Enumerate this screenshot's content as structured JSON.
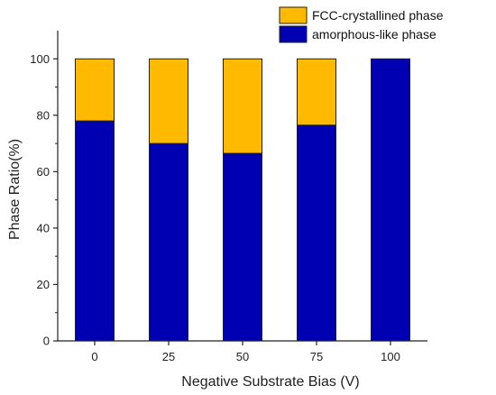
{
  "chart_data": {
    "type": "bar",
    "stacked": true,
    "categories": [
      "0",
      "25",
      "50",
      "75",
      "100"
    ],
    "series": [
      {
        "name": "amorphous-like phase",
        "values": [
          78,
          70,
          66.5,
          76.5,
          100
        ],
        "color": "#0000b3"
      },
      {
        "name": "FCC-crystallined phase",
        "values": [
          22,
          30,
          33.5,
          23.5,
          0
        ],
        "color": "#ffba00"
      }
    ],
    "title": "",
    "xlabel": "Negative Substrate Bias (V)",
    "ylabel": "Phase Ratio(%)",
    "ylim": [
      0,
      110
    ],
    "yticks": [
      "0",
      "20",
      "40",
      "60",
      "80",
      "100"
    ],
    "grid": false,
    "legend_position": "top-right"
  }
}
